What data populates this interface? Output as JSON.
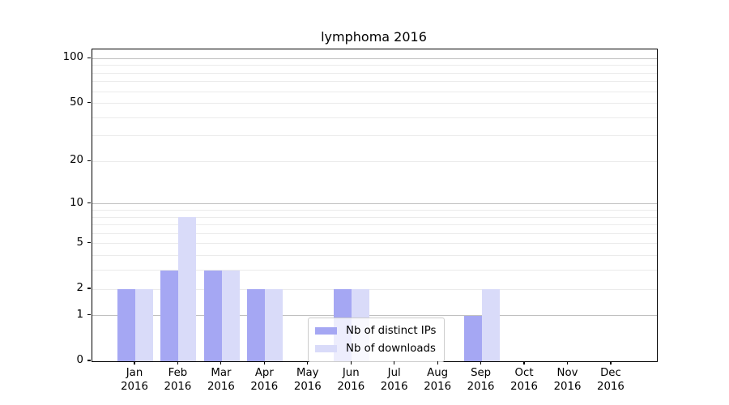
{
  "chart_data": {
    "type": "bar",
    "title": "lymphoma 2016",
    "categories": [
      "Jan",
      "Feb",
      "Mar",
      "Apr",
      "May",
      "Jun",
      "Jul",
      "Aug",
      "Sep",
      "Oct",
      "Nov",
      "Dec"
    ],
    "x_year_label": "2016",
    "series": [
      {
        "name": "Nb of distinct IPs",
        "color": "#a5a7f3",
        "values": [
          2,
          3,
          3,
          2,
          0,
          2,
          0,
          0,
          1,
          0,
          0,
          0
        ]
      },
      {
        "name": "Nb of downloads",
        "color": "#d9dbf9",
        "values": [
          2,
          8,
          3,
          2,
          0,
          2,
          0,
          0,
          2,
          0,
          0,
          0
        ]
      }
    ],
    "y_scale": "log10(1+y) symlog",
    "y_ticks": [
      0,
      1,
      2,
      5,
      10,
      20,
      50,
      100
    ],
    "y_major_gridlines": [
      1,
      10,
      100
    ],
    "y_minor_gridlines": [
      2,
      3,
      4,
      5,
      6,
      7,
      8,
      9,
      20,
      30,
      40,
      50,
      60,
      70,
      80,
      90
    ],
    "y_max": 115,
    "ylim": [
      0,
      115
    ],
    "xlabel": "",
    "ylabel": "",
    "grid": "on",
    "legend_position": "lower center",
    "legend_entries": [
      "Nb of distinct IPs",
      "Nb of downloads"
    ]
  },
  "colors": {
    "bar_distinct_ips": "#a5a7f3",
    "bar_downloads": "#d9dbf9",
    "grid_major": "#c0c0c0",
    "grid_minor": "#ebebeb",
    "axis_spine": "#000000",
    "background": "#ffffff"
  }
}
